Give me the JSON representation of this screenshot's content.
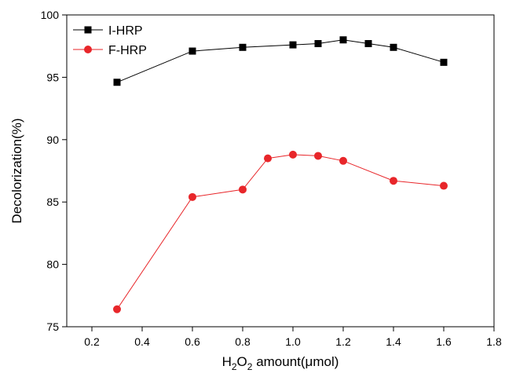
{
  "chart_data": {
    "type": "line",
    "title": "",
    "xlabel": {
      "parts": [
        {
          "text": "H",
          "sub": false
        },
        {
          "text": "2",
          "sub": true
        },
        {
          "text": "O",
          "sub": false
        },
        {
          "text": "2",
          "sub": true
        },
        {
          "text": " amount(μmol)",
          "sub": false
        }
      ]
    },
    "ylabel": "Decolorization(%)",
    "xlim": [
      0.1,
      1.8
    ],
    "ylim": [
      75,
      100
    ],
    "xticks": [
      "0.2",
      "0.4",
      "0.6",
      "0.8",
      "1.0",
      "1.2",
      "1.4",
      "1.6",
      "1.8"
    ],
    "yticks": [
      "75",
      "80",
      "85",
      "90",
      "95",
      "100"
    ],
    "grid": false,
    "legend_position": "top-left",
    "series": [
      {
        "name": "I-HRP",
        "color": "#000000",
        "marker": "square",
        "x": [
          0.3,
          0.6,
          0.8,
          1.0,
          1.1,
          1.2,
          1.3,
          1.4,
          1.6
        ],
        "y": [
          94.6,
          97.1,
          97.4,
          97.6,
          97.7,
          98.0,
          97.7,
          97.4,
          96.2
        ]
      },
      {
        "name": "F-HRP",
        "color": "#e8262a",
        "marker": "circle",
        "x": [
          0.3,
          0.6,
          0.8,
          0.9,
          1.0,
          1.1,
          1.2,
          1.4,
          1.6
        ],
        "y": [
          76.4,
          85.4,
          86.0,
          88.5,
          88.8,
          88.7,
          88.3,
          86.7,
          86.3
        ]
      }
    ]
  }
}
